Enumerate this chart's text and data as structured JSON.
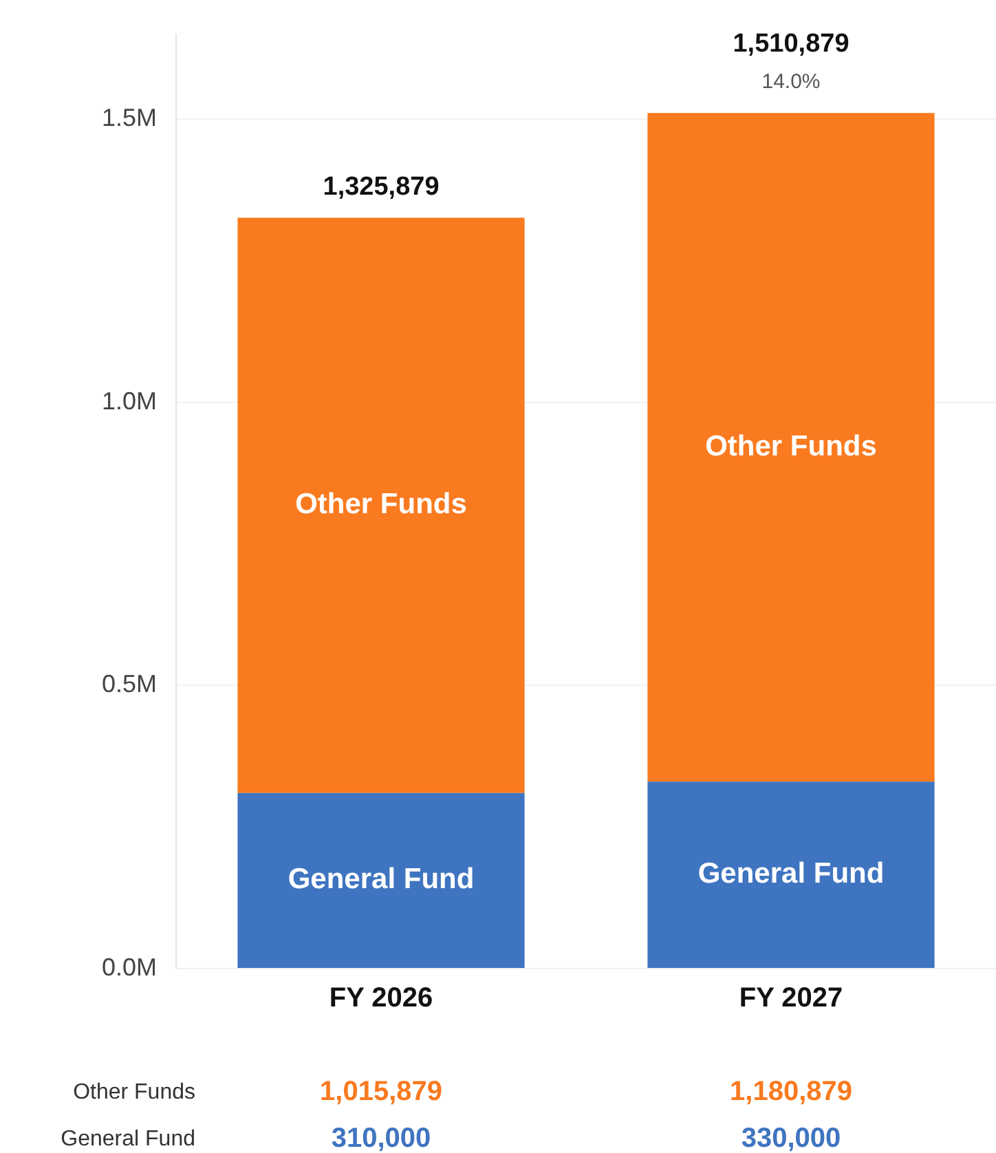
{
  "chart_data": {
    "type": "bar",
    "stacked": true,
    "categories": [
      "FY 2026",
      "FY 2027"
    ],
    "series": [
      {
        "name": "General Fund",
        "color": "#3f74c0",
        "values": [
          310000,
          330000
        ],
        "value_labels": [
          "310,000",
          "330,000"
        ]
      },
      {
        "name": "Other Funds",
        "color": "#f97a1f",
        "values": [
          1015879,
          1180879
        ],
        "value_labels": [
          "1,015,879",
          "1,180,879"
        ]
      }
    ],
    "ylim": [
      0,
      1650000
    ],
    "yticks": [
      {
        "value": 0,
        "label": "0.0M"
      },
      {
        "value": 500000,
        "label": "0.5M"
      },
      {
        "value": 1000000,
        "label": "1.0M"
      },
      {
        "value": 1500000,
        "label": "1.5M"
      }
    ],
    "grid": "y",
    "totals": [
      "1,325,879",
      "1,510,879"
    ],
    "annotations": [
      {
        "text": "14.0%",
        "x": "FY 2027",
        "y": 1510879
      }
    ]
  }
}
